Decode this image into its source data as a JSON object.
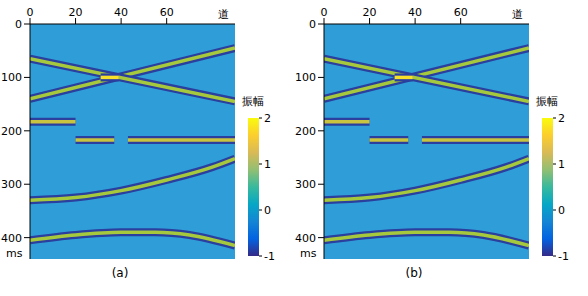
{
  "chart_data": [
    {
      "type": "line",
      "title": "(a)",
      "xlabel": "道",
      "ylabel": "ms",
      "xlim": [
        0,
        90
      ],
      "xticks": [
        0,
        20,
        40,
        60
      ],
      "ylim": [
        0,
        440
      ],
      "yticks": [
        0,
        100,
        200,
        300,
        400
      ],
      "colorbar": {
        "label": "振幅",
        "range": [
          -1,
          2
        ],
        "ticks": [
          -1,
          0,
          1,
          2
        ]
      },
      "series": [
        {
          "color": "#a6c83c",
          "x": [
            0,
            90
          ],
          "values": [
            140,
            45
          ]
        },
        {
          "color": "#a6c83c",
          "x": [
            0,
            90
          ],
          "values": [
            65,
            145
          ]
        },
        {
          "color": "#f6e02a",
          "x": [
            31,
            39
          ],
          "values": [
            100,
            100
          ]
        },
        {
          "color": "#c9c440",
          "x": [
            0,
            20
          ],
          "values": [
            183,
            183
          ]
        },
        {
          "color": "#c9c440",
          "x": [
            20,
            37
          ],
          "values": [
            217,
            217
          ]
        },
        {
          "color": "#c9c440",
          "x": [
            43,
            90
          ],
          "values": [
            217,
            217
          ]
        },
        {
          "color": "#a6c83c",
          "x": [
            0,
            20,
            40,
            60,
            80,
            90
          ],
          "values": [
            330,
            325,
            312,
            292,
            268,
            252
          ]
        },
        {
          "color": "#a6c83c",
          "x": [
            0,
            20,
            40,
            55,
            70,
            90
          ],
          "values": [
            405,
            395,
            390,
            390,
            395,
            415
          ]
        }
      ]
    },
    {
      "type": "line",
      "title": "(b)",
      "xlabel": "道",
      "ylabel": "ms",
      "xlim": [
        0,
        90
      ],
      "xticks": [
        0,
        20,
        40,
        60
      ],
      "ylim": [
        0,
        440
      ],
      "yticks": [
        0,
        100,
        200,
        300,
        400
      ],
      "colorbar": {
        "label": "振幅",
        "range": [
          -1,
          2
        ],
        "ticks": [
          -1,
          0,
          1,
          2
        ]
      },
      "series": [
        {
          "color": "#a6c83c",
          "x": [
            0,
            90
          ],
          "values": [
            140,
            45
          ]
        },
        {
          "color": "#a6c83c",
          "x": [
            0,
            90
          ],
          "values": [
            65,
            145
          ]
        },
        {
          "color": "#f6e02a",
          "x": [
            31,
            39
          ],
          "values": [
            100,
            100
          ]
        },
        {
          "color": "#c9c440",
          "x": [
            0,
            20
          ],
          "values": [
            183,
            183
          ]
        },
        {
          "color": "#c9c440",
          "x": [
            20,
            37
          ],
          "values": [
            217,
            217
          ]
        },
        {
          "color": "#c9c440",
          "x": [
            43,
            90
          ],
          "values": [
            217,
            217
          ]
        },
        {
          "color": "#a6c83c",
          "x": [
            0,
            20,
            40,
            60,
            80,
            90
          ],
          "values": [
            330,
            325,
            312,
            292,
            268,
            252
          ]
        },
        {
          "color": "#a6c83c",
          "x": [
            0,
            20,
            40,
            55,
            70,
            90
          ],
          "values": [
            405,
            395,
            390,
            390,
            395,
            415
          ]
        }
      ]
    }
  ]
}
